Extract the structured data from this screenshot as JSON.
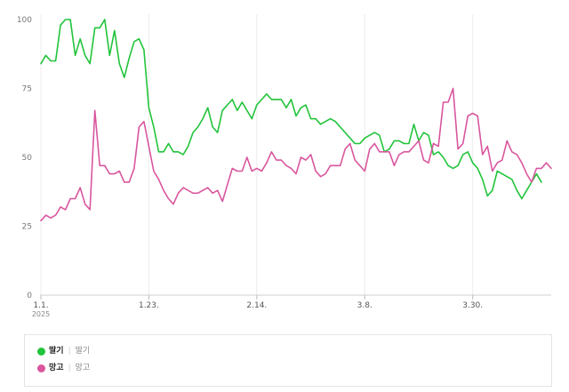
{
  "chart_data": {
    "type": "line",
    "title": "",
    "xlabel": "",
    "ylabel": "",
    "ylim": [
      0,
      100
    ],
    "y_ticks": [
      "0",
      "25",
      "50",
      "75",
      "100"
    ],
    "x_ticks": [
      {
        "index": 0,
        "label": "1.1."
      },
      {
        "index": 22,
        "label": "1.23."
      },
      {
        "index": 44,
        "label": "2.14."
      },
      {
        "index": 66,
        "label": "3.8."
      },
      {
        "index": 88,
        "label": "3.30."
      }
    ],
    "x_year_label": "2025",
    "grid": "vertical",
    "legend_position": "bottom",
    "x_start": "2025-01-01",
    "x_end": "2025-04-16",
    "series": [
      {
        "name": "딸기",
        "key": "딸기",
        "color": "#21c43a",
        "values": [
          84,
          87,
          85,
          85,
          98,
          100,
          100,
          87,
          93,
          87,
          84,
          97,
          97,
          100,
          87,
          96,
          84,
          79,
          86,
          92,
          93,
          89,
          68,
          61,
          52,
          52,
          55,
          52,
          52,
          51,
          54,
          59,
          61,
          64,
          68,
          61,
          59,
          67,
          69,
          71,
          67,
          70,
          67,
          64,
          69,
          71,
          73,
          71,
          71,
          71,
          68,
          71,
          65,
          68,
          69,
          64,
          64,
          62,
          63,
          64,
          63,
          61,
          59,
          57,
          55,
          55,
          57,
          58,
          59,
          58,
          52,
          53,
          56,
          56,
          55,
          55,
          62,
          56,
          59,
          58,
          51,
          52,
          50,
          47,
          46,
          47,
          51,
          52,
          48,
          46,
          42,
          36,
          38,
          45,
          44,
          43,
          42,
          38,
          35,
          38,
          41,
          44,
          41
        ]
      },
      {
        "name": "망고",
        "key": "망고",
        "color": "#d9569e",
        "values": [
          27,
          29,
          28,
          29,
          32,
          31,
          35,
          35,
          39,
          33,
          31,
          67,
          47,
          47,
          44,
          44,
          45,
          41,
          41,
          46,
          61,
          63,
          54,
          45,
          42,
          38,
          35,
          33,
          37,
          39,
          38,
          37,
          37,
          38,
          39,
          37,
          38,
          34,
          40,
          46,
          45,
          45,
          50,
          45,
          46,
          45,
          48,
          52,
          49,
          49,
          47,
          46,
          44,
          50,
          49,
          51,
          45,
          43,
          44,
          47,
          47,
          47,
          53,
          55,
          49,
          47,
          45,
          53,
          55,
          52,
          52,
          52,
          47,
          51,
          52,
          52,
          54,
          56,
          49,
          48,
          55,
          54,
          70,
          70,
          75,
          53,
          55,
          65,
          66,
          65,
          51,
          54,
          45,
          48,
          49,
          56,
          52,
          51,
          48,
          44,
          41,
          46,
          46,
          48,
          46
        ]
      }
    ]
  },
  "legend": {
    "items": [
      {
        "name": "딸기",
        "key": "딸기",
        "color": "#21c43a"
      },
      {
        "name": "망고",
        "key": "망고",
        "color": "#d9569e"
      }
    ]
  }
}
